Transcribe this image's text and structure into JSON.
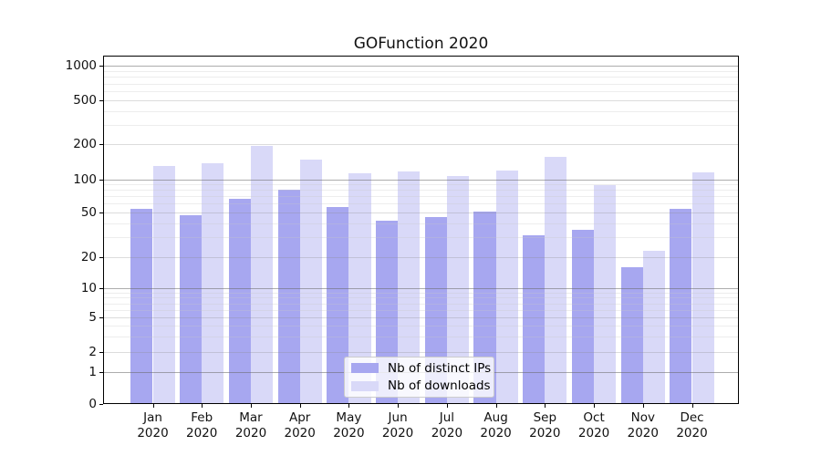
{
  "title": "GOFunction 2020",
  "chart_data": {
    "type": "bar",
    "title": "GOFunction 2020",
    "categories": [
      "Jan",
      "Feb",
      "Mar",
      "Apr",
      "May",
      "Jun",
      "Jul",
      "Aug",
      "Sep",
      "Oct",
      "Nov",
      "Dec"
    ],
    "x_year": "2020",
    "series": [
      {
        "name": "Nb of distinct IPs",
        "color": "rgba(145,145,236,0.8)",
        "solid_color": "#a7a7f0",
        "values": [
          54,
          47,
          67,
          80,
          56,
          42,
          45,
          51,
          31,
          35,
          16,
          54
        ]
      },
      {
        "name": "Nb of downloads",
        "color": "rgba(208,208,246,0.8)",
        "solid_color": "#d9d9f8",
        "values": [
          130,
          137,
          195,
          148,
          112,
          118,
          107,
          120,
          156,
          88,
          23,
          115
        ]
      }
    ],
    "y_ticks": [
      0,
      1,
      2,
      5,
      10,
      20,
      50,
      100,
      200,
      500,
      1000
    ],
    "y_scale": "symlog",
    "ylim": [
      0,
      1000
    ],
    "xlabel": "",
    "ylabel": "",
    "grid": true,
    "grid_minor": true,
    "legend_position": "lower center",
    "spine_color": "#000000",
    "major_grid_color": "#ababab",
    "minor_grid_color": "#ececec"
  }
}
